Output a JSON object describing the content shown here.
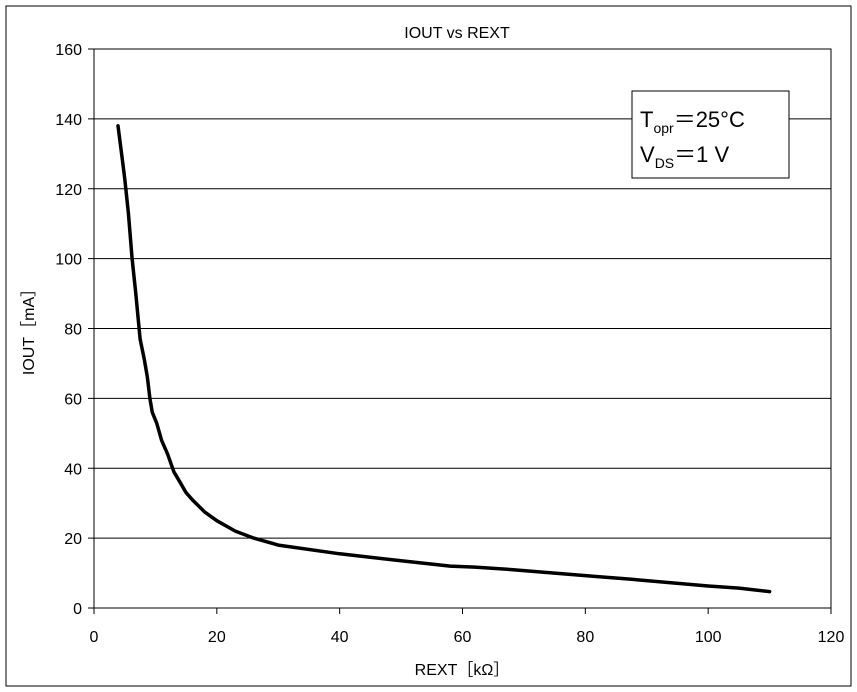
{
  "chart_data": {
    "type": "line",
    "title": "IOUT vs REXT",
    "xlabel": "REXT［kΩ］",
    "ylabel": "IOUT［mA］",
    "xlim": [
      0,
      120
    ],
    "ylim": [
      0,
      160
    ],
    "x_ticks": [
      "0",
      "20",
      "40",
      "60",
      "80",
      "100",
      "120"
    ],
    "y_ticks": [
      "0",
      "20",
      "40",
      "60",
      "80",
      "100",
      "120",
      "140",
      "160"
    ],
    "grid": "horizontal",
    "annotation": {
      "line1": {
        "main": "T",
        "sub": "opr",
        "rest": "＝25°C"
      },
      "line2": {
        "main": "V",
        "sub": "DS",
        "rest": "＝1 V"
      }
    },
    "series": [
      {
        "color": "#000000",
        "points": [
          [
            3.9,
            138
          ],
          [
            4.5,
            130
          ],
          [
            5.0,
            123
          ],
          [
            5.6,
            113
          ],
          [
            6.2,
            100
          ],
          [
            6.8,
            90
          ],
          [
            7.5,
            77
          ],
          [
            8.2,
            71
          ],
          [
            8.7,
            66
          ],
          [
            9.1,
            60
          ],
          [
            9.5,
            56
          ],
          [
            10.2,
            53
          ],
          [
            11,
            48
          ],
          [
            12,
            44
          ],
          [
            13,
            39
          ],
          [
            14,
            36
          ],
          [
            15,
            33
          ],
          [
            16,
            31
          ],
          [
            18,
            27.5
          ],
          [
            20,
            25
          ],
          [
            23,
            22
          ],
          [
            26,
            20
          ],
          [
            30,
            18
          ],
          [
            40,
            15.5
          ],
          [
            50,
            13.5
          ],
          [
            58,
            12
          ],
          [
            62,
            11.7
          ],
          [
            68,
            11
          ],
          [
            82,
            9
          ],
          [
            87,
            8.3
          ],
          [
            100,
            6.3
          ],
          [
            105,
            5.7
          ],
          [
            110,
            4.7
          ]
        ]
      }
    ]
  }
}
